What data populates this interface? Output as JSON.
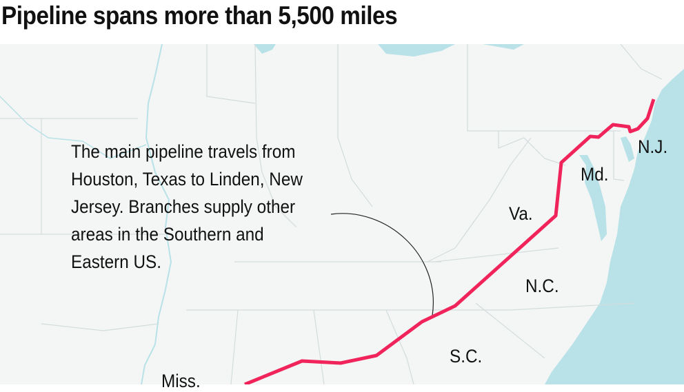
{
  "title": "Pipeline spans more than 5,500 miles",
  "annotation": [
    "The main pipeline travels from",
    "Houston, Texas to Linden, New",
    "Jersey. Branches supply other",
    "areas in the Southern and",
    "Eastern US."
  ],
  "state_labels": {
    "nj": "N.J.",
    "md": "Md.",
    "va": "Va.",
    "nc": "N.C.",
    "sc": "S.C.",
    "miss": "Miss."
  },
  "colors": {
    "land": "#f3f6f5",
    "water": "#b8e1e8",
    "border": "#d3dcdc",
    "pipeline": "#f0245a",
    "text": "#111111"
  }
}
